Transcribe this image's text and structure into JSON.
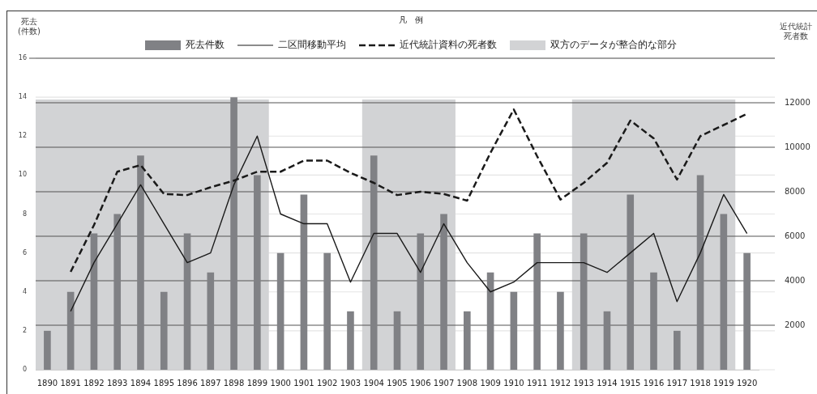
{
  "chart_data": {
    "type": "bar",
    "ylabel": "死去\n(件数)",
    "y2label": "近代統計死者数",
    "legend_title": "凡　例",
    "categories": [
      "1890",
      "1891",
      "1892",
      "1893",
      "1894",
      "1895",
      "1896",
      "1897",
      "1898",
      "1899",
      "1900",
      "1901",
      "1902",
      "1903",
      "1904",
      "1905",
      "1906",
      "1907",
      "1908",
      "1909",
      "1910",
      "1911",
      "1912",
      "1913",
      "1914",
      "1915",
      "1916",
      "1917",
      "1918",
      "1919",
      "1920"
    ],
    "series": [
      {
        "name": "死去件数",
        "color": "#808185",
        "values": [
          2,
          4,
          7,
          8,
          11,
          4,
          7,
          5,
          14,
          10,
          6,
          9,
          6,
          3,
          11,
          3,
          7,
          8,
          3,
          5,
          4,
          7,
          4,
          7,
          3,
          9,
          5,
          2,
          10,
          8,
          6
        ]
      },
      {
        "name": "二区間移動平均",
        "type": "line",
        "color": "#1a1a1a",
        "line_style": "solid",
        "values": [
          null,
          3,
          5.5,
          7.5,
          9.5,
          7.5,
          5.5,
          6,
          9.5,
          12,
          8,
          7.5,
          7.5,
          4.5,
          7,
          7,
          5,
          7.5,
          5.5,
          4,
          4.5,
          5.5,
          5.5,
          5.5,
          5,
          6,
          7,
          3.5,
          6,
          9,
          7
        ]
      },
      {
        "name": "近代統計資料の死者数",
        "type": "line",
        "axis": "y2",
        "color": "#1a1a1a",
        "line_style": "dashed",
        "values": [
          null,
          4400,
          6500,
          8900,
          9200,
          7900,
          7850,
          8200,
          8500,
          8900,
          8900,
          9400,
          9400,
          8850,
          8400,
          7850,
          8000,
          7900,
          7600,
          9750,
          11700,
          9600,
          7650,
          8400,
          9300,
          11200,
          10400,
          8550,
          10500,
          11000,
          11500
        ]
      }
    ],
    "bands": [
      {
        "axis": "x",
        "from": "1890",
        "to": "1899",
        "label": "双方のデータが整合的な部分",
        "color": "#d2d3d5"
      },
      {
        "axis": "x",
        "from": "1904",
        "to": "1907",
        "color": "#d2d3d5"
      },
      {
        "axis": "x",
        "from": "1913",
        "to": "1919",
        "color": "#d2d3d5"
      }
    ],
    "ylim": [
      0,
      16
    ],
    "yticks": [
      0,
      2,
      4,
      6,
      8,
      10,
      12,
      14,
      16
    ],
    "y2lim": [
      0,
      14000
    ],
    "y2ticks": [
      2000,
      4000,
      6000,
      8000,
      10000,
      12000
    ],
    "grid": "y",
    "legend": "top left",
    "marker": "none"
  }
}
